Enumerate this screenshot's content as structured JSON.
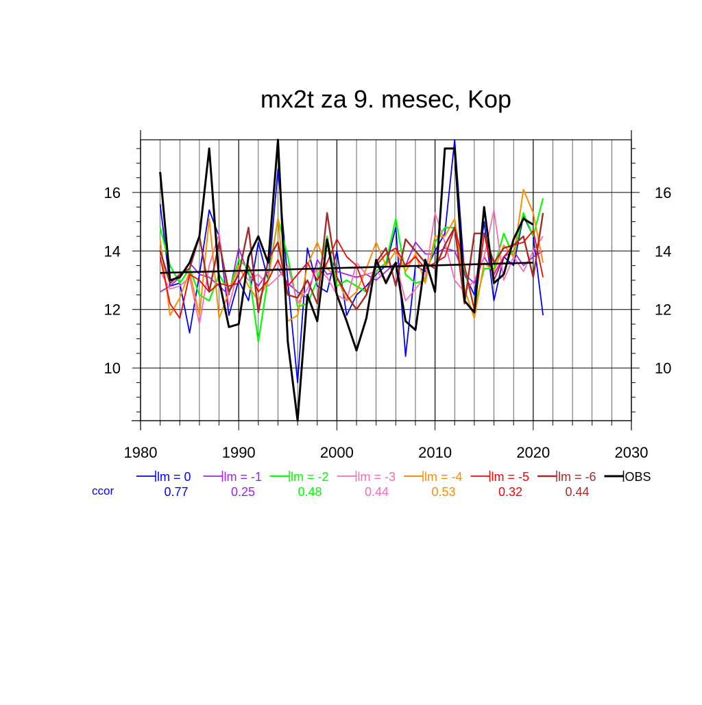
{
  "chart_data": {
    "type": "line",
    "title": "mx2t za 9. mesec, Kop",
    "xlim": [
      1980,
      2030
    ],
    "ylim": [
      8.2,
      17.8
    ],
    "x_ticks": [
      1980,
      1990,
      2000,
      2010,
      2020,
      2030
    ],
    "y_ticks": [
      10,
      12,
      14,
      16
    ],
    "grid": true,
    "x": [
      1982,
      1983,
      1984,
      1985,
      1986,
      1987,
      1988,
      1989,
      1990,
      1991,
      1992,
      1993,
      1994,
      1995,
      1996,
      1997,
      1998,
      1999,
      2000,
      2001,
      2002,
      2003,
      2004,
      2005,
      2006,
      2007,
      2008,
      2009,
      2010,
      2011,
      2012,
      2013,
      2014,
      2015,
      2016,
      2017,
      2018,
      2019,
      2020,
      2021
    ],
    "ccor_label": "ccor",
    "legend_position": "bottom",
    "series": [
      {
        "name": "lm = 0",
        "color": "#0000ff",
        "ccor": "0.77",
        "width": 1.8,
        "values": [
          15.6,
          12.8,
          12.9,
          11.2,
          13.2,
          15.4,
          14.5,
          11.8,
          13.0,
          12.3,
          14.3,
          13.0,
          16.8,
          13.0,
          9.5,
          14.1,
          12.8,
          12.6,
          14.0,
          11.8,
          12.5,
          12.8,
          13.2,
          13.5,
          14.8,
          10.4,
          13.5,
          13.3,
          14.0,
          14.6,
          17.8,
          13.2,
          12.5,
          15.0,
          12.3,
          13.8,
          13.5,
          15.2,
          14.5,
          11.8
        ]
      },
      {
        "name": "lm = -1",
        "color": "#a020f0",
        "ccor": "0.25",
        "width": 1.8,
        "values": [
          12.6,
          12.8,
          13.1,
          13.6,
          13.2,
          13.1,
          12.8,
          12.5,
          14.1,
          13.2,
          12.8,
          13.3,
          13.4,
          12.9,
          12.6,
          12.4,
          13.7,
          13.2,
          13.3,
          13.2,
          13.1,
          13.2,
          13.0,
          13.3,
          13.6,
          13.5,
          14.3,
          13.9,
          13.9,
          14.1,
          14.0,
          13.2,
          12.9,
          13.8,
          13.2,
          13.8,
          14.0,
          13.5,
          13.8,
          14.0
        ]
      },
      {
        "name": "lm = -2",
        "color": "#00ff00",
        "ccor": "0.48",
        "width": 2.2,
        "values": [
          14.8,
          13.5,
          12.9,
          13.4,
          12.5,
          12.3,
          13.2,
          12.6,
          13.7,
          13.4,
          10.9,
          13.1,
          15.1,
          13.8,
          12.1,
          12.2,
          13.0,
          14.5,
          12.8,
          13.0,
          12.8,
          12.6,
          13.3,
          13.6,
          15.1,
          13.2,
          12.9,
          13.0,
          14.3,
          14.8,
          14.8,
          13.4,
          12.0,
          13.4,
          13.4,
          14.6,
          13.8,
          15.3,
          14.5,
          15.8
        ]
      },
      {
        "name": "lm = -3",
        "color": "#ff69b4",
        "ccor": "0.44",
        "width": 1.8,
        "values": [
          13.3,
          12.7,
          12.8,
          13.1,
          11.5,
          13.5,
          14.6,
          12.1,
          13.4,
          13.0,
          13.2,
          12.8,
          13.1,
          13.5,
          12.2,
          12.7,
          13.4,
          13.1,
          12.5,
          12.3,
          13.6,
          13.2,
          13.3,
          13.0,
          13.6,
          12.3,
          12.7,
          13.1,
          15.3,
          14.3,
          13.0,
          12.6,
          13.0,
          13.8,
          15.4,
          13.0,
          13.8,
          13.3,
          14.0,
          14.5
        ]
      },
      {
        "name": "lm = -4",
        "color": "#ff8c00",
        "ccor": "0.53",
        "width": 2.0,
        "values": [
          14.4,
          11.8,
          12.4,
          13.3,
          11.8,
          15.1,
          11.7,
          12.6,
          13.5,
          12.8,
          12.3,
          13.0,
          15.1,
          11.6,
          11.8,
          13.5,
          14.3,
          13.4,
          13.1,
          12.3,
          12.6,
          13.4,
          14.3,
          13.5,
          14.0,
          13.3,
          13.9,
          12.9,
          14.5,
          14.5,
          15.1,
          12.7,
          11.7,
          13.6,
          13.3,
          14.2,
          13.8,
          16.1,
          15.3,
          13.6
        ]
      },
      {
        "name": "lm = -5",
        "color": "#ff0000",
        "ccor": "0.32",
        "width": 1.8,
        "values": [
          13.8,
          12.2,
          11.7,
          13.2,
          13.0,
          12.6,
          12.9,
          12.8,
          12.9,
          13.5,
          12.6,
          13.0,
          13.7,
          12.8,
          13.2,
          13.6,
          13.0,
          13.6,
          14.4,
          13.8,
          13.5,
          12.6,
          13.5,
          13.9,
          14.1,
          13.5,
          13.8,
          13.4,
          13.6,
          13.8,
          14.8,
          13.5,
          12.0,
          14.6,
          13.0,
          13.8,
          14.2,
          14.3,
          14.7,
          13.1
        ]
      },
      {
        "name": "lm = -6",
        "color": "#a52a2a",
        "ccor": "0.44",
        "width": 2.4,
        "values": [
          14.0,
          12.9,
          13.2,
          13.4,
          14.5,
          12.6,
          14.3,
          12.6,
          13.2,
          14.8,
          11.9,
          13.7,
          14.3,
          12.5,
          12.4,
          13.0,
          12.2,
          15.3,
          13.1,
          12.5,
          12.0,
          12.5,
          13.6,
          14.1,
          12.8,
          14.4,
          14.0,
          13.6,
          13.4,
          14.2,
          14.8,
          12.2,
          14.6,
          14.6,
          13.6,
          14.1,
          14.2,
          14.5,
          13.1,
          15.3
        ]
      },
      {
        "name": "OBS",
        "color": "#000000",
        "ccor": "",
        "width": 3.0,
        "values": [
          16.7,
          13.0,
          13.1,
          13.6,
          14.5,
          17.5,
          13.0,
          11.4,
          11.5,
          13.8,
          14.5,
          13.6,
          17.8,
          10.9,
          8.2,
          12.5,
          11.6,
          14.4,
          12.5,
          11.6,
          10.6,
          11.7,
          13.7,
          12.9,
          13.6,
          11.6,
          11.3,
          13.7,
          12.6,
          17.5,
          17.5,
          12.3,
          11.9,
          15.5,
          12.9,
          13.2,
          14.4,
          15.1,
          14.9,
          null
        ]
      }
    ],
    "trend": {
      "name": "",
      "color": "#000000",
      "x": [
        1982,
        2020
      ],
      "values": [
        13.25,
        13.6
      ]
    }
  }
}
